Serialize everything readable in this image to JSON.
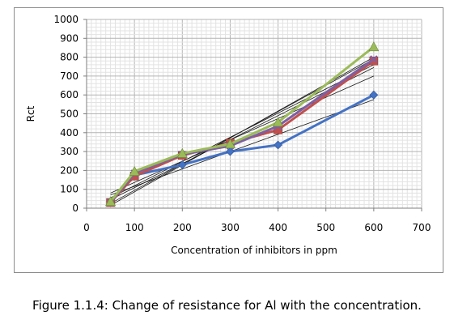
{
  "caption": "Figure 1.1.4: Change of resistance for Al with the concentration.",
  "chart_data": {
    "type": "line",
    "xlabel": "Concentration of inhibitors in ppm",
    "ylabel": "Rct",
    "xlim": [
      0,
      700
    ],
    "ylim": [
      0,
      1000
    ],
    "x_ticks": [
      0,
      100,
      200,
      300,
      400,
      500,
      600,
      700
    ],
    "y_ticks": [
      0,
      100,
      200,
      300,
      400,
      500,
      600,
      700,
      800,
      900,
      1000
    ],
    "grid": true,
    "legend": "none",
    "x": [
      50,
      100,
      200,
      300,
      400,
      600
    ],
    "series": [
      {
        "values": [
          35,
          175,
          230,
          300,
          335,
          600
        ],
        "color": "#4472c4",
        "marker": "diamond"
      },
      {
        "values": [
          30,
          170,
          280,
          345,
          415,
          780
        ],
        "color": "#c0504d",
        "marker": "square"
      },
      {
        "values": [
          30,
          185,
          285,
          330,
          435,
          790
        ],
        "color": "#7e5fa2",
        "marker": "x"
      },
      {
        "values": [
          35,
          195,
          290,
          340,
          455,
          855
        ],
        "color": "#9bbb59",
        "marker": "triangle"
      }
    ],
    "trendlines": [
      {
        "x": [
          50,
          600
        ],
        "values": [
          70,
          575
        ]
      },
      {
        "x": [
          50,
          600
        ],
        "values": [
          45,
          745
        ]
      },
      {
        "x": [
          50,
          600
        ],
        "values": [
          25,
          790
        ]
      },
      {
        "x": [
          50,
          600
        ],
        "values": [
          55,
          760
        ]
      },
      {
        "x": [
          50,
          600
        ],
        "values": [
          15,
          800
        ]
      },
      {
        "x": [
          50,
          600
        ],
        "values": [
          80,
          700
        ]
      }
    ]
  }
}
